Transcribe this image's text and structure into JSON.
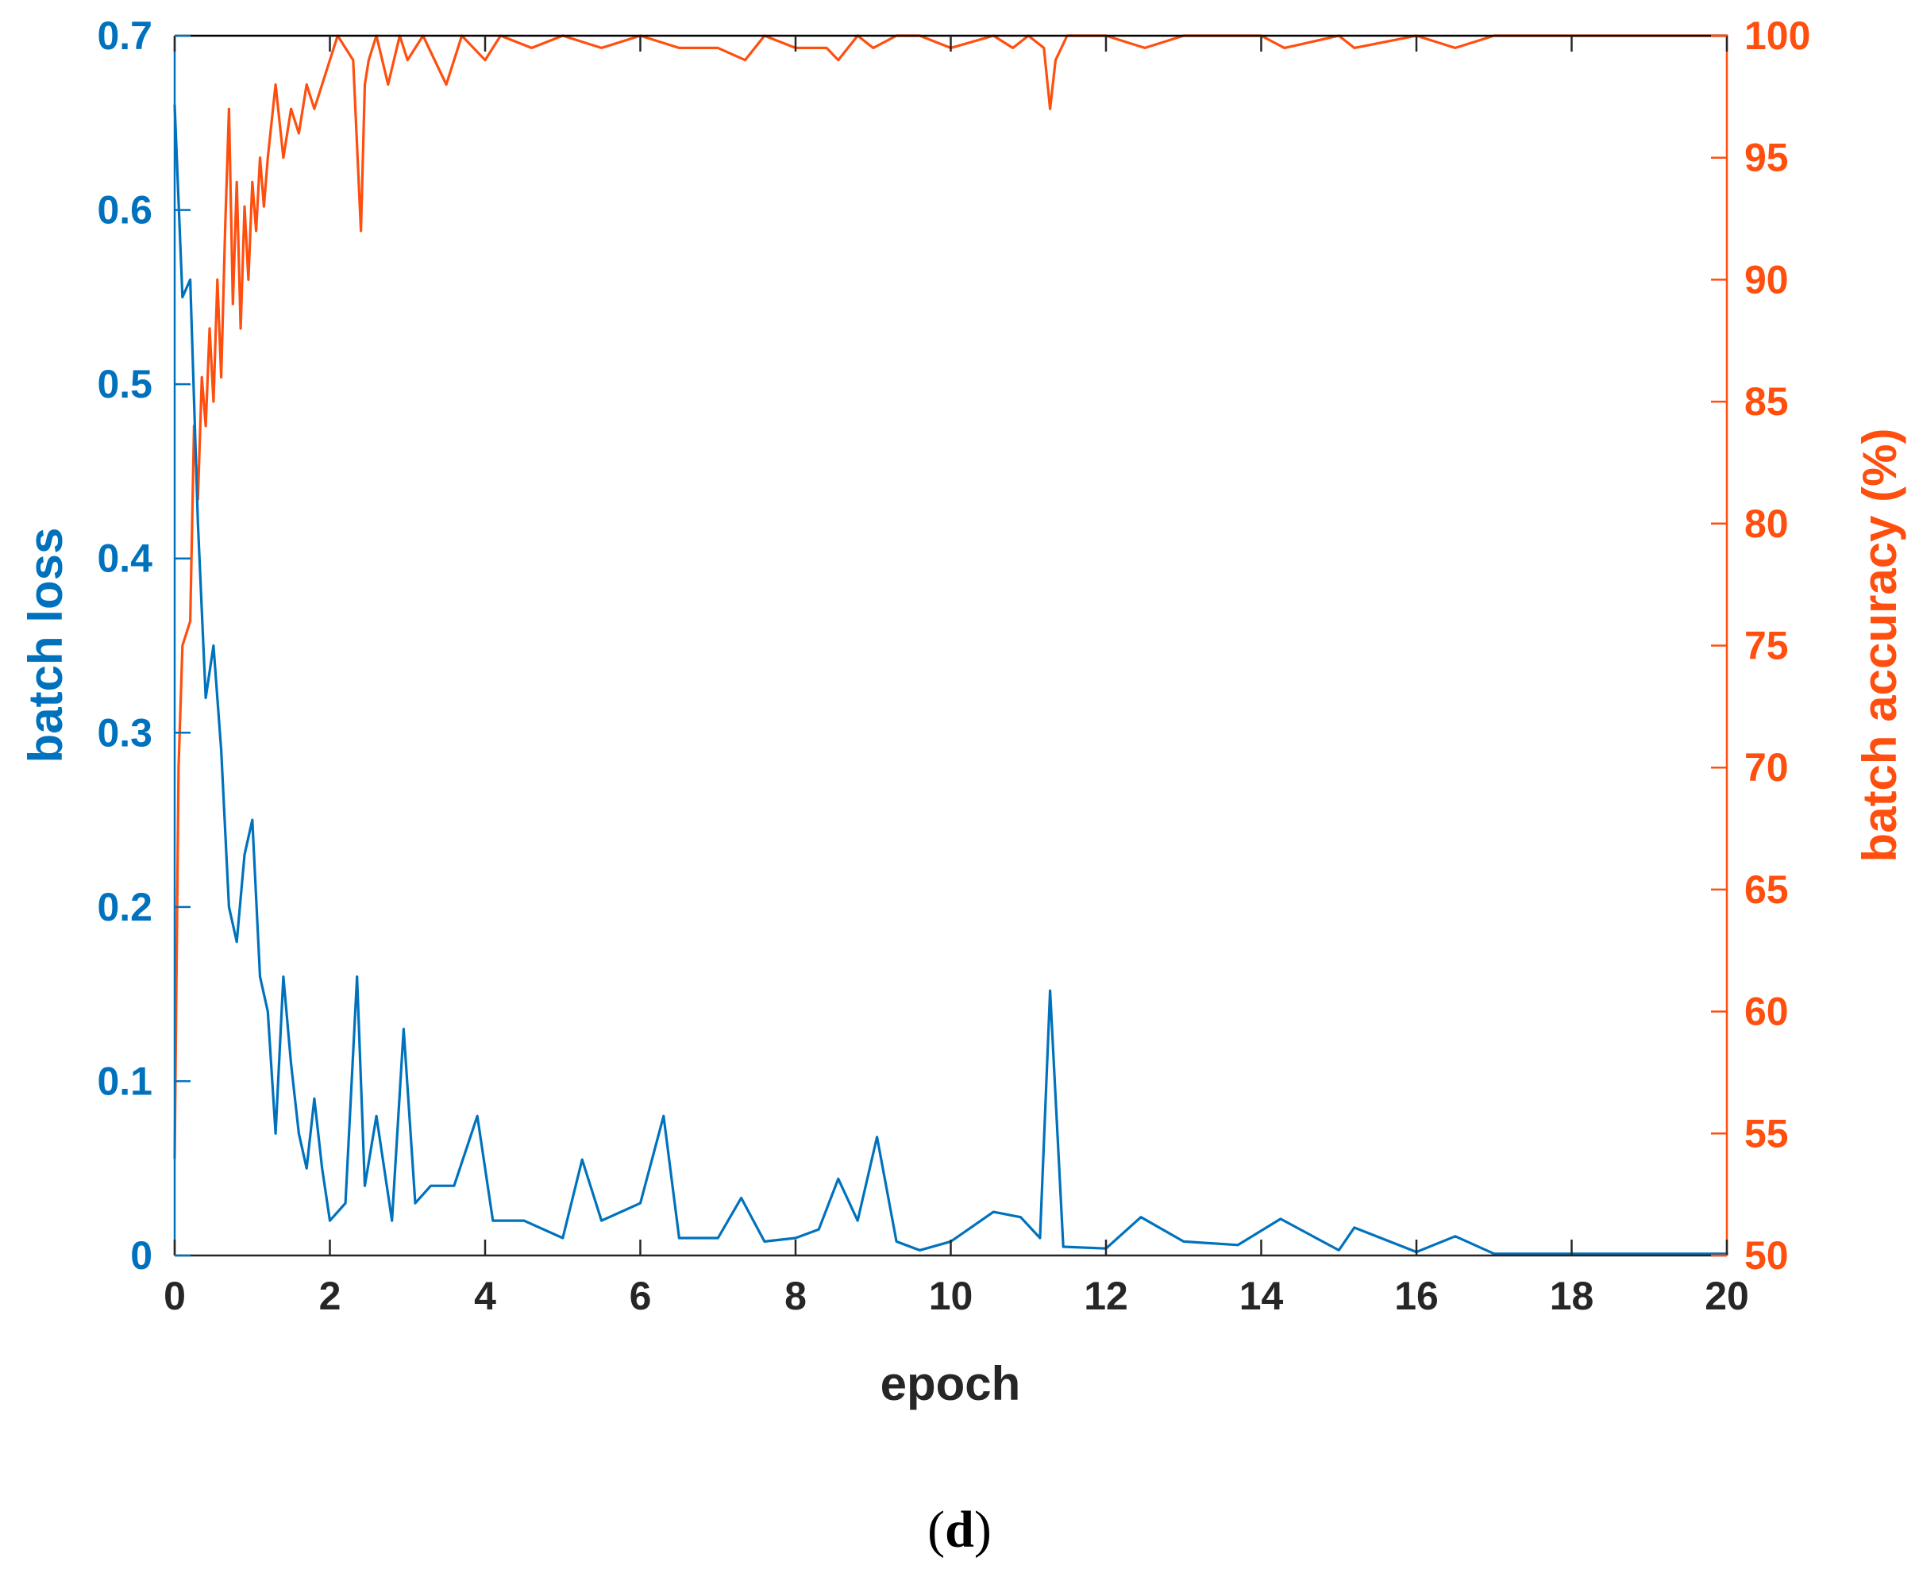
{
  "panel_label": {
    "open": "(",
    "letter": "d",
    "close": ")"
  },
  "chart_data": {
    "type": "line",
    "xlabel": "epoch",
    "ylabel_left": "batch loss",
    "ylabel_right": "batch accuracy (%)",
    "xlim": [
      0,
      20
    ],
    "ylim_left": [
      0,
      0.7
    ],
    "ylim_right": [
      50,
      100
    ],
    "xticks": [
      "0",
      "2",
      "4",
      "6",
      "8",
      "10",
      "12",
      "14",
      "16",
      "18",
      "20"
    ],
    "yticks_left": [
      "0",
      "0.1",
      "0.2",
      "0.3",
      "0.4",
      "0.5",
      "0.6",
      "0.7"
    ],
    "yticks_right": [
      "50",
      "55",
      "60",
      "65",
      "70",
      "75",
      "80",
      "85",
      "90",
      "95",
      "100"
    ],
    "grid": false,
    "colors": {
      "loss": "#0072BD",
      "accuracy": "#FF4F0F",
      "axes": "#000000"
    },
    "series": [
      {
        "axis": "left",
        "x": [
          0,
          0.1,
          0.2,
          0.3,
          0.4,
          0.5,
          0.6,
          0.7,
          0.8,
          0.9,
          1.0,
          1.1,
          1.2,
          1.3,
          1.4,
          1.5,
          1.6,
          1.7,
          1.8,
          1.9,
          2.0,
          2.2,
          2.35,
          2.45,
          2.6,
          2.8,
          2.95,
          3.1,
          3.3,
          3.6,
          3.9,
          4.1,
          4.5,
          5.0,
          5.25,
          5.5,
          6.0,
          6.3,
          6.5,
          7.0,
          7.3,
          7.6,
          8.0,
          8.3,
          8.55,
          8.8,
          9.05,
          9.3,
          9.6,
          10.0,
          10.55,
          10.9,
          11.15,
          11.28,
          11.45,
          12.0,
          12.45,
          13.0,
          13.7,
          14.25,
          15.0,
          15.2,
          16.0,
          16.5,
          17.0,
          18.0,
          19.0,
          20.0
        ],
        "y": [
          0.66,
          0.55,
          0.56,
          0.42,
          0.32,
          0.35,
          0.29,
          0.2,
          0.18,
          0.23,
          0.25,
          0.16,
          0.14,
          0.07,
          0.16,
          0.11,
          0.07,
          0.05,
          0.09,
          0.05,
          0.02,
          0.03,
          0.16,
          0.04,
          0.08,
          0.02,
          0.13,
          0.03,
          0.04,
          0.04,
          0.08,
          0.02,
          0.02,
          0.01,
          0.055,
          0.02,
          0.03,
          0.08,
          0.01,
          0.01,
          0.033,
          0.008,
          0.01,
          0.015,
          0.044,
          0.02,
          0.068,
          0.008,
          0.003,
          0.008,
          0.025,
          0.022,
          0.01,
          0.152,
          0.005,
          0.004,
          0.022,
          0.008,
          0.006,
          0.021,
          0.003,
          0.016,
          0.002,
          0.011,
          0.001,
          0.001,
          0.001,
          0.001
        ]
      },
      {
        "axis": "right",
        "x": [
          0,
          0.05,
          0.1,
          0.2,
          0.25,
          0.3,
          0.35,
          0.4,
          0.45,
          0.5,
          0.55,
          0.6,
          0.65,
          0.7,
          0.75,
          0.8,
          0.85,
          0.9,
          0.95,
          1.0,
          1.05,
          1.1,
          1.15,
          1.2,
          1.3,
          1.4,
          1.5,
          1.6,
          1.7,
          1.8,
          1.9,
          2.0,
          2.1,
          2.3,
          2.4,
          2.45,
          2.5,
          2.6,
          2.75,
          2.9,
          3.0,
          3.2,
          3.5,
          3.7,
          4.0,
          4.2,
          4.6,
          5.0,
          5.5,
          6.0,
          6.5,
          7.0,
          7.35,
          7.6,
          8.0,
          8.4,
          8.55,
          8.8,
          9.0,
          9.3,
          9.6,
          10.0,
          10.55,
          10.8,
          11.0,
          11.2,
          11.28,
          11.35,
          11.5,
          12.0,
          12.5,
          13.0,
          14.0,
          14.3,
          15.0,
          15.2,
          16.0,
          16.5,
          17.0,
          18.0,
          19.0,
          20.0
        ],
        "y": [
          54,
          70,
          75,
          76,
          84,
          81,
          86,
          84,
          88,
          85,
          90,
          86,
          92,
          97,
          89,
          94,
          88,
          93,
          90,
          94,
          92,
          95,
          93,
          95,
          98,
          95,
          97,
          96,
          98,
          97,
          98,
          99,
          100,
          99,
          92,
          98,
          99,
          100,
          98,
          100,
          99,
          100,
          98,
          100,
          99,
          100,
          99.5,
          100,
          99.5,
          100,
          99.5,
          99.5,
          99,
          100,
          99.5,
          99.5,
          99,
          100,
          99.5,
          100,
          100,
          99.5,
          100,
          99.5,
          100,
          99.5,
          97,
          99,
          100,
          100,
          99.5,
          100,
          100,
          99.5,
          100,
          99.5,
          100,
          99.5,
          100,
          100,
          100,
          100
        ]
      }
    ]
  }
}
